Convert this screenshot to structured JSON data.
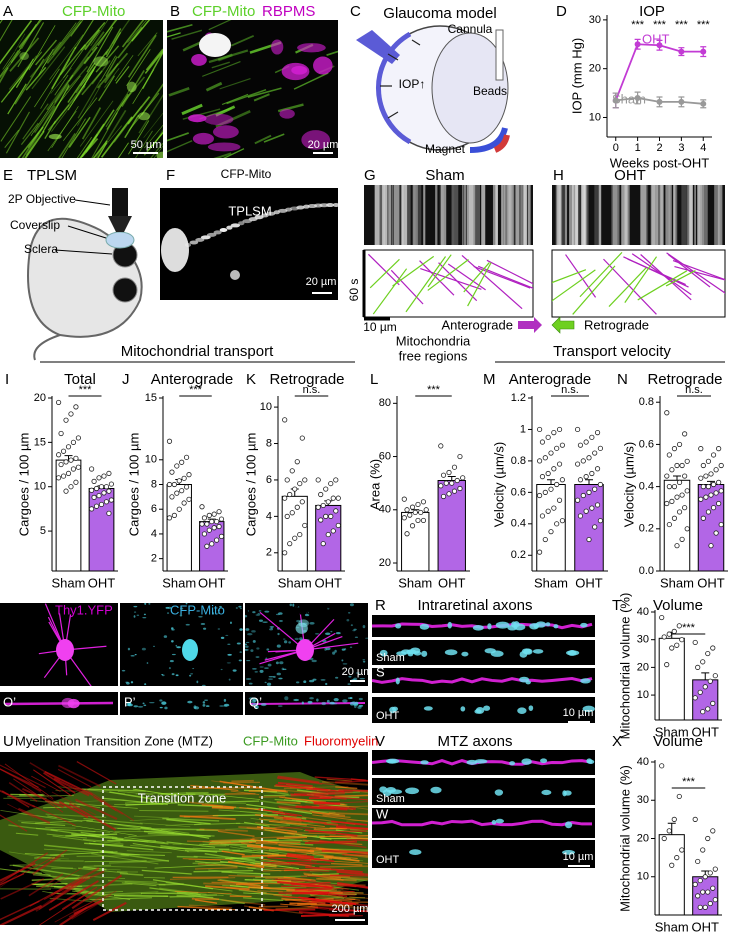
{
  "figure": {
    "A": {
      "letter": "A",
      "label": "CFP-Mito",
      "scale": "50 µm"
    },
    "B": {
      "letter": "B",
      "label1": "CFP-Mito",
      "label2": "RBPMS",
      "scale": "20 µm"
    },
    "C": {
      "letter": "C",
      "title": "Glaucoma model",
      "cannula": "Cannula",
      "beads": "Beads",
      "iop": "IOP↑",
      "magnet": "Magnet"
    },
    "E": {
      "letter": "E",
      "title": "TPLSM",
      "objective": "2P Objective",
      "coverslip": "Coverslip",
      "sclera": "Sclera"
    },
    "F": {
      "letter": "F",
      "title": "CFP-Mito",
      "label": "TPLSM",
      "scale": "20 µm"
    },
    "G": {
      "letter": "G",
      "title": "Sham"
    },
    "H": {
      "letter": "H",
      "title": "OHT"
    },
    "kymograph": {
      "time": "60 s",
      "scale": "10 µm",
      "anterograde": "Anterograde",
      "retrograde": "Retrograde"
    },
    "sections": {
      "transport": "Mitochondrial transport",
      "velocity": "Transport velocity"
    },
    "O": {
      "letter": "O",
      "label": "Thy1.YFP",
      "letter_prime": "O’"
    },
    "P": {
      "letter": "P",
      "label": "CFP-Mito",
      "letter_prime": "P’"
    },
    "Q": {
      "letter": "Q",
      "label": "Merge",
      "scale": "20 µm",
      "letter_prime": "Q’"
    },
    "R": {
      "letter": "R",
      "title": "Intraretinal axons",
      "sham": "Sham"
    },
    "S": {
      "letter": "S",
      "oht": "OHT",
      "scale": "10 µm"
    },
    "U": {
      "letter": "U",
      "title": "Myelination Transition Zone (MTZ)",
      "label1": "CFP-Mito",
      "label2": "Fluoromyelin",
      "zone": "Transition zone",
      "scale": "200 µm"
    },
    "V": {
      "letter": "V",
      "title": "MTZ axons",
      "sham": "Sham"
    },
    "W": {
      "letter": "W",
      "oht": "OHT",
      "scale": "10 µm"
    }
  },
  "chart_data": [
    {
      "type": "line",
      "panel": "D",
      "title": "IOP",
      "ylabel": "IOP (mm Hg)",
      "xlabel": "Weeks post-OHT",
      "x": [
        0,
        1,
        2,
        3,
        4
      ],
      "xlim": [
        -0.4,
        4.4
      ],
      "xticks": [
        0,
        1,
        2,
        3,
        4
      ],
      "ylim": [
        6,
        31
      ],
      "yticks": [
        10,
        20,
        30
      ],
      "series": [
        {
          "name": "OHT",
          "color": "#c23bd4",
          "values": [
            13.5,
            25,
            24.8,
            23.5,
            23.5
          ],
          "errors": [
            1.5,
            1,
            1,
            0.8,
            1
          ]
        },
        {
          "name": "Sham",
          "color": "#999999",
          "values": [
            13.5,
            14,
            13.2,
            13.2,
            12.8
          ],
          "errors": [
            1.5,
            1.2,
            1,
            1,
            0.8
          ]
        }
      ],
      "annotations": [
        {
          "text": "***",
          "x": 1
        },
        {
          "text": "***",
          "x": 2
        },
        {
          "text": "***",
          "x": 3
        },
        {
          "text": "***",
          "x": 4
        }
      ]
    },
    {
      "type": "bar",
      "panel": "I",
      "title": "Total",
      "ylabel": "Cargoes / 100 µm",
      "categories": [
        "Sham",
        "OHT"
      ],
      "values": [
        13,
        9.8
      ],
      "errors": [
        0.5,
        0.3
      ],
      "colors": [
        "#ffffff",
        "#b266e6"
      ],
      "significance": "***",
      "points": [
        [
          19.5,
          19,
          18.2,
          17.5,
          16,
          15.5,
          15,
          14.5,
          14,
          13.6,
          13.2,
          13,
          12.8,
          12.5,
          12.2,
          12,
          11.5,
          11.2,
          11,
          10.5,
          10,
          9.5
        ],
        [
          12,
          11.5,
          11.2,
          11,
          10.6,
          10.3,
          10,
          10,
          9.8,
          9.6,
          9.5,
          9.3,
          9,
          8.8,
          8.5,
          8.3,
          8,
          7.8,
          7.5,
          7
        ]
      ],
      "ylim": [
        0.5,
        20
      ],
      "yticks": [
        5,
        10,
        15,
        20
      ]
    },
    {
      "type": "bar",
      "panel": "J",
      "title": "Anterograde",
      "ylabel": "Cargoes / 100 µm",
      "categories": [
        "Sham",
        "OHT"
      ],
      "values": [
        8,
        5
      ],
      "errors": [
        0.4,
        0.2
      ],
      "colors": [
        "#ffffff",
        "#b266e6"
      ],
      "significance": "***",
      "points": [
        [
          11.5,
          10.2,
          9.8,
          9.5,
          9,
          8.8,
          8.5,
          8.3,
          8,
          8,
          7.8,
          7.5,
          7.3,
          7,
          6.8,
          6.5,
          6,
          5.5,
          5.3
        ],
        [
          6.2,
          5.8,
          5.6,
          5.5,
          5.3,
          5.2,
          5,
          5,
          4.8,
          4.8,
          4.6,
          4.5,
          4.3,
          4,
          3.8,
          3.5,
          3.2,
          3
        ]
      ],
      "ylim": [
        1,
        15
      ],
      "yticks": [
        2,
        4,
        6,
        8,
        10,
        15
      ]
    },
    {
      "type": "bar",
      "panel": "K",
      "title": "Retrograde",
      "ylabel": "Cargoes / 100 µm",
      "categories": [
        "Sham",
        "OHT"
      ],
      "values": [
        5.1,
        4.6
      ],
      "errors": [
        0.4,
        0.25
      ],
      "colors": [
        "#ffffff",
        "#b266e6"
      ],
      "significance": "n.s.",
      "points": [
        [
          9.3,
          8.3,
          7,
          6.5,
          6,
          6,
          5.8,
          5.5,
          5.2,
          5,
          4.8,
          4.5,
          4.2,
          4,
          3.5,
          3,
          2.8,
          2.5,
          2
        ],
        [
          6,
          6,
          5.8,
          5.5,
          5.2,
          5,
          5,
          4.8,
          4.6,
          4.5,
          4.3,
          4,
          4,
          3.8,
          3.5,
          3.2,
          3,
          2.5
        ]
      ],
      "ylim": [
        1,
        10.5
      ],
      "yticks": [
        2,
        4,
        6,
        8,
        10
      ]
    },
    {
      "type": "bar",
      "panel": "L",
      "title": [
        "Mitochondria",
        "free regions"
      ],
      "ylabel": "Area (%)",
      "categories": [
        "Sham",
        "OHT"
      ],
      "values": [
        39,
        51
      ],
      "errors": [
        1,
        1.5
      ],
      "colors": [
        "#ffffff",
        "#b266e6"
      ],
      "significance": "***",
      "points": [
        [
          44,
          43,
          42,
          41,
          40,
          40,
          39,
          39,
          38,
          37,
          36,
          36,
          34,
          31
        ],
        [
          64,
          60,
          56,
          54,
          53,
          52,
          51,
          50,
          50,
          49,
          48,
          47,
          46,
          45
        ]
      ],
      "ylim": [
        17,
        82
      ],
      "yticks": [
        20,
        40,
        60,
        80
      ]
    },
    {
      "type": "bar",
      "panel": "M",
      "title": "Anterograde",
      "ylabel": "Velocity (µm/s)",
      "categories": [
        "Sham",
        "OHT"
      ],
      "values": [
        0.65,
        0.65
      ],
      "errors": [
        0.03,
        0.03
      ],
      "colors": [
        "#ffffff",
        "#b266e6"
      ],
      "significance": "n.s.",
      "points": [
        [
          1.0,
          1.0,
          0.98,
          0.95,
          0.92,
          0.9,
          0.88,
          0.85,
          0.82,
          0.8,
          0.78,
          0.75,
          0.72,
          0.7,
          0.68,
          0.65,
          0.62,
          0.6,
          0.58,
          0.55,
          0.5,
          0.48,
          0.45,
          0.42,
          0.4,
          0.35,
          0.3,
          0.22
        ],
        [
          1.0,
          0.98,
          0.95,
          0.92,
          0.9,
          0.88,
          0.85,
          0.82,
          0.8,
          0.78,
          0.75,
          0.72,
          0.7,
          0.68,
          0.65,
          0.62,
          0.6,
          0.58,
          0.55,
          0.52,
          0.5,
          0.48,
          0.45,
          0.42,
          0.38,
          0.3
        ]
      ],
      "ylim": [
        0.1,
        1.2
      ],
      "yticks": [
        0.2,
        0.4,
        0.6,
        0.8,
        1.0,
        1.2
      ]
    },
    {
      "type": "bar",
      "panel": "N",
      "title": "Retrograde",
      "ylabel": "Velocity (µm/s)",
      "categories": [
        "Sham",
        "OHT"
      ],
      "values": [
        0.43,
        0.41
      ],
      "errors": [
        0.02,
        0.015
      ],
      "colors": [
        "#ffffff",
        "#b266e6"
      ],
      "significance": "n.s.",
      "points": [
        [
          0.75,
          0.65,
          0.6,
          0.58,
          0.55,
          0.52,
          0.5,
          0.5,
          0.48,
          0.45,
          0.45,
          0.42,
          0.4,
          0.4,
          0.38,
          0.36,
          0.35,
          0.33,
          0.32,
          0.3,
          0.28,
          0.25,
          0.22,
          0.2,
          0.15,
          0.12
        ],
        [
          0.58,
          0.58,
          0.55,
          0.52,
          0.5,
          0.5,
          0.48,
          0.46,
          0.45,
          0.44,
          0.42,
          0.41,
          0.4,
          0.4,
          0.38,
          0.37,
          0.36,
          0.35,
          0.34,
          0.32,
          0.3,
          0.28,
          0.25,
          0.22,
          0.18,
          0.12
        ]
      ],
      "ylim": [
        0,
        0.82
      ],
      "yticks": [
        {
          "value": 0,
          "label": "0.0"
        },
        0.2,
        0.4,
        0.6,
        0.8
      ]
    },
    {
      "type": "bar",
      "panel": "T",
      "title": "Volume",
      "ylabel": "Mitochondrial volume (%)",
      "categories": [
        "Sham",
        "OHT"
      ],
      "values": [
        30.5,
        15.5
      ],
      "errors": [
        2.2,
        2.5
      ],
      "colors": [
        "#ffffff",
        "#b266e6"
      ],
      "significance": "***",
      "points": [
        [
          38,
          35,
          33,
          32,
          31,
          30,
          28,
          27,
          21
        ],
        [
          29,
          27,
          25,
          22,
          20,
          17,
          15,
          13,
          11,
          9,
          7,
          5,
          4
        ]
      ],
      "ylim": [
        1,
        40
      ],
      "yticks": [
        10,
        20,
        30,
        40
      ]
    },
    {
      "type": "bar",
      "panel": "X",
      "title": "Volume",
      "ylabel": "Mitochondrial volume (%)",
      "categories": [
        "Sham",
        "OHT"
      ],
      "values": [
        21,
        10
      ],
      "errors": [
        3,
        1.5
      ],
      "colors": [
        "#ffffff",
        "#b266e6"
      ],
      "significance": "***",
      "points": [
        [
          39,
          31,
          25,
          22,
          20,
          17,
          15,
          13
        ],
        [
          25,
          22,
          20,
          17,
          14,
          12,
          11,
          10,
          9,
          8,
          7,
          6,
          6,
          5,
          4,
          3,
          2,
          2
        ]
      ],
      "ylim": [
        0,
        40
      ],
      "yticks": [
        10,
        20,
        30,
        40
      ]
    }
  ]
}
